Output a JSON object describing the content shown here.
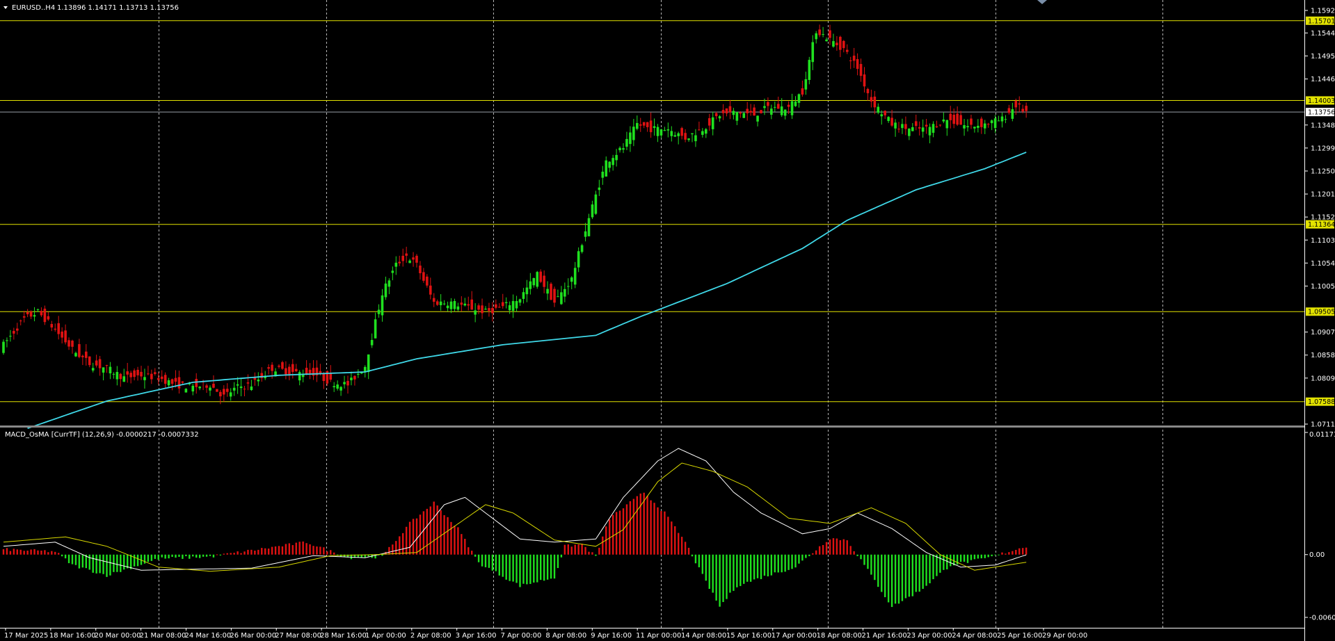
{
  "header": {
    "symbol_title": "EURUSD..H4",
    "ohlc": "1.13896 1.14171 1.13713 1.13756"
  },
  "macd_header": "MACD_OsMA [CurrTF] (12,26,9) -0.0000217 -0.0007332",
  "colors": {
    "background": "#000000",
    "bull_candle": "#1fe01f",
    "bear_candle": "#e01212",
    "ma_line": "#3fd8e8",
    "level_line": "#e2e200",
    "grid": "#c8c8c8",
    "macd_line": "#ffffff",
    "signal_line": "#d8d800"
  },
  "price_axis": {
    "ticks": [
      "1.15920",
      "1.15440",
      "1.14950",
      "1.14460",
      "1.13480",
      "1.12990",
      "1.12500",
      "1.12010",
      "1.11520",
      "1.11030",
      "1.10540",
      "1.10050",
      "1.09070",
      "1.08580",
      "1.08090",
      "1.07110"
    ],
    "level_tags": [
      "1.15701",
      "1.14003",
      "1.11364",
      "1.09505",
      "1.07588"
    ],
    "current_price": "1.13756"
  },
  "macd_axis": {
    "ticks": [
      "0.0117388",
      "0.00",
      "-0.006030"
    ]
  },
  "time_axis": {
    "labels": [
      "17 Mar 2025",
      "18 Mar 16:00",
      "20 Mar 00:00",
      "21 Mar 08:00",
      "24 Mar 16:00",
      "26 Mar 00:00",
      "27 Mar 08:00",
      "28 Mar 16:00",
      "1 Apr 00:00",
      "2 Apr 08:00",
      "3 Apr 16:00",
      "7 Apr 00:00",
      "8 Apr 08:00",
      "9 Apr 16:00",
      "11 Apr 00:00",
      "14 Apr 08:00",
      "15 Apr 16:00",
      "17 Apr 00:00",
      "18 Apr 08:00",
      "21 Apr 16:00",
      "23 Apr 00:00",
      "24 Apr 08:00",
      "25 Apr 16:00",
      "29 Apr 00:00"
    ]
  },
  "chart_data": {
    "type": "candlestick",
    "symbol": "EURUSD..H4",
    "y_range": [
      1.0711,
      1.1592
    ],
    "horizontal_levels": [
      1.15701,
      1.14003,
      1.11364,
      1.09505,
      1.07588
    ],
    "last_price": 1.13756,
    "anchor_closes": [
      [
        0,
        1.088
      ],
      [
        6,
        1.0935
      ],
      [
        10,
        1.095
      ],
      [
        14,
        1.092
      ],
      [
        20,
        1.087
      ],
      [
        25,
        1.084
      ],
      [
        30,
        1.083
      ],
      [
        35,
        1.081
      ],
      [
        40,
        1.0815
      ],
      [
        45,
        1.081
      ],
      [
        50,
        1.0795
      ],
      [
        55,
        1.079
      ],
      [
        60,
        1.0795
      ],
      [
        64,
        1.077
      ],
      [
        68,
        1.079
      ],
      [
        72,
        1.0795
      ],
      [
        78,
        1.083
      ],
      [
        85,
        1.082
      ],
      [
        90,
        1.082
      ],
      [
        95,
        1.08
      ],
      [
        100,
        1.0795
      ],
      [
        105,
        1.0835
      ],
      [
        110,
        1.099
      ],
      [
        114,
        1.105
      ],
      [
        117,
        1.107
      ],
      [
        120,
        1.105
      ],
      [
        125,
        1.097
      ],
      [
        130,
        1.097
      ],
      [
        135,
        1.096
      ],
      [
        140,
        1.095
      ],
      [
        145,
        1.096
      ],
      [
        150,
        1.098
      ],
      [
        155,
        1.103
      ],
      [
        160,
        1.097
      ],
      [
        165,
        1.102
      ],
      [
        170,
        1.115
      ],
      [
        175,
        1.127
      ],
      [
        180,
        1.13
      ],
      [
        184,
        1.135
      ],
      [
        188,
        1.134
      ],
      [
        193,
        1.134
      ],
      [
        198,
        1.132
      ],
      [
        203,
        1.134
      ],
      [
        208,
        1.137
      ],
      [
        213,
        1.1375
      ],
      [
        218,
        1.137
      ],
      [
        222,
        1.1385
      ],
      [
        228,
        1.1385
      ],
      [
        232,
        1.142
      ],
      [
        236,
        1.155
      ],
      [
        240,
        1.153
      ],
      [
        244,
        1.151
      ],
      [
        248,
        1.147
      ],
      [
        252,
        1.14
      ],
      [
        258,
        1.135
      ],
      [
        263,
        1.134
      ],
      [
        268,
        1.134
      ],
      [
        274,
        1.136
      ],
      [
        280,
        1.1345
      ],
      [
        285,
        1.135
      ],
      [
        290,
        1.136
      ],
      [
        294,
        1.139
      ],
      [
        297,
        1.13756
      ]
    ],
    "moving_average": {
      "points": [
        [
          7,
          1.0702
        ],
        [
          30,
          1.076
        ],
        [
          55,
          1.08
        ],
        [
          80,
          1.0815
        ],
        [
          105,
          1.0822
        ],
        [
          120,
          1.085
        ],
        [
          145,
          1.088
        ],
        [
          172,
          1.09
        ],
        [
          185,
          1.094
        ],
        [
          210,
          1.101
        ],
        [
          232,
          1.1085
        ],
        [
          245,
          1.1145
        ],
        [
          265,
          1.121
        ],
        [
          285,
          1.1255
        ],
        [
          297,
          1.129
        ]
      ]
    },
    "macd": {
      "zero": 0.0,
      "range": [
        -0.00603,
        0.0117388
      ],
      "histogram_anchors": [
        [
          0,
          0.0005
        ],
        [
          15,
          0.0003
        ],
        [
          20,
          -0.001
        ],
        [
          30,
          -0.002
        ],
        [
          45,
          -0.0004
        ],
        [
          60,
          -0.0002
        ],
        [
          72,
          0.0004
        ],
        [
          88,
          0.0012
        ],
        [
          100,
          -0.0003
        ],
        [
          110,
          -0.0002
        ],
        [
          118,
          0.003
        ],
        [
          125,
          0.005
        ],
        [
          132,
          0.0025
        ],
        [
          138,
          -0.0008
        ],
        [
          150,
          -0.003
        ],
        [
          160,
          -0.0022
        ],
        [
          163,
          0.0008
        ],
        [
          168,
          0.001
        ],
        [
          172,
          -0.0002
        ],
        [
          176,
          0.0035
        ],
        [
          186,
          0.006
        ],
        [
          192,
          0.004
        ],
        [
          198,
          0.0012
        ],
        [
          203,
          -0.002
        ],
        [
          208,
          -0.005
        ],
        [
          213,
          -0.003
        ],
        [
          222,
          -0.002
        ],
        [
          230,
          -0.0012
        ],
        [
          240,
          0.0016
        ],
        [
          245,
          0.0014
        ],
        [
          250,
          -0.001
        ],
        [
          258,
          -0.005
        ],
        [
          266,
          -0.0035
        ],
        [
          275,
          -0.001
        ],
        [
          285,
          -0.0004
        ],
        [
          290,
          0.0001
        ],
        [
          297,
          0.0008
        ]
      ],
      "macd_line": [
        [
          0,
          0.0008
        ],
        [
          15,
          0.0012
        ],
        [
          25,
          -0.0003
        ],
        [
          40,
          -0.0015
        ],
        [
          55,
          -0.0014
        ],
        [
          72,
          -0.0013
        ],
        [
          90,
          -0.0001
        ],
        [
          105,
          -0.0003
        ],
        [
          118,
          0.0007
        ],
        [
          128,
          0.0048
        ],
        [
          134,
          0.0055
        ],
        [
          140,
          0.004
        ],
        [
          150,
          0.0015
        ],
        [
          160,
          0.0012
        ],
        [
          172,
          0.0015
        ],
        [
          180,
          0.0055
        ],
        [
          190,
          0.009
        ],
        [
          196,
          0.0102
        ],
        [
          204,
          0.009
        ],
        [
          212,
          0.006
        ],
        [
          220,
          0.004
        ],
        [
          232,
          0.002
        ],
        [
          240,
          0.0025
        ],
        [
          248,
          0.004
        ],
        [
          258,
          0.0025
        ],
        [
          268,
          0.0002
        ],
        [
          278,
          -0.0012
        ],
        [
          288,
          -0.001
        ],
        [
          297,
          -2.17e-05
        ]
      ],
      "signal_line": [
        [
          0,
          0.0012
        ],
        [
          18,
          0.0017
        ],
        [
          30,
          0.0008
        ],
        [
          45,
          -0.0012
        ],
        [
          60,
          -0.0016
        ],
        [
          80,
          -0.0012
        ],
        [
          95,
          -0.0001
        ],
        [
          108,
          0.0
        ],
        [
          120,
          0.0002
        ],
        [
          130,
          0.0025
        ],
        [
          140,
          0.0048
        ],
        [
          148,
          0.004
        ],
        [
          160,
          0.0014
        ],
        [
          172,
          0.0008
        ],
        [
          180,
          0.0024
        ],
        [
          190,
          0.007
        ],
        [
          197,
          0.0088
        ],
        [
          206,
          0.008
        ],
        [
          216,
          0.0065
        ],
        [
          228,
          0.0035
        ],
        [
          240,
          0.003
        ],
        [
          252,
          0.0045
        ],
        [
          262,
          0.003
        ],
        [
          272,
          0.0
        ],
        [
          282,
          -0.0015
        ],
        [
          297,
          -0.0007332
        ]
      ]
    }
  }
}
